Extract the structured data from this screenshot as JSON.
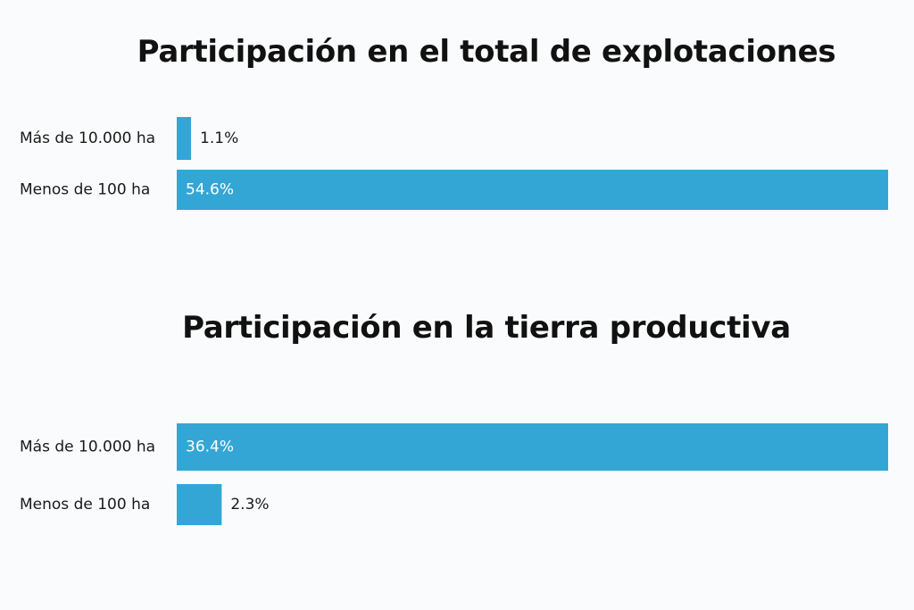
{
  "chart_data": [
    {
      "type": "bar",
      "orientation": "horizontal",
      "title": "Participación en el total de explotaciones",
      "categories": [
        "Más de 10.000 ha",
        "Menos de 100 ha"
      ],
      "values": [
        1.1,
        54.6
      ],
      "value_labels": [
        "1.1%",
        "54.6%"
      ],
      "xlim": [
        0,
        54.6
      ],
      "grid": false,
      "bar_color": "#34a6d6"
    },
    {
      "type": "bar",
      "orientation": "horizontal",
      "title": "Participación en la tierra productiva",
      "categories": [
        "Más de 10.000 ha",
        "Menos de 100 ha"
      ],
      "values": [
        36.4,
        2.3
      ],
      "value_labels": [
        "36.4%",
        "2.3%"
      ],
      "xlim": [
        0,
        36.4
      ],
      "grid": false,
      "bar_color": "#34a6d6"
    }
  ]
}
